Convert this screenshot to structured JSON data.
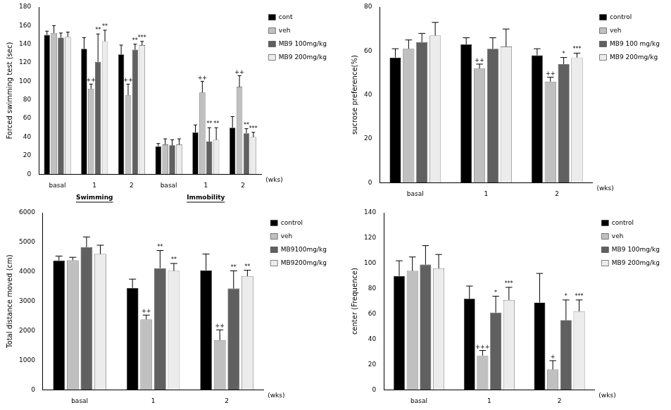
{
  "chart_data": [
    {
      "type": "bar",
      "y_label": "Forced swimming test (sec)",
      "x_label": "(wks)",
      "categories": [
        "basal",
        "1",
        "2",
        "basal",
        "1",
        "2"
      ],
      "groups": [
        "Swimming",
        "Immobility"
      ],
      "ylim": [
        0,
        180
      ],
      "yticks": [
        0,
        20,
        40,
        60,
        80,
        100,
        120,
        140,
        160,
        180
      ],
      "grid": false,
      "legend": "right",
      "series": [
        {
          "name": "cont",
          "color": "#000000",
          "values": [
            150,
            135,
            129,
            30,
            45,
            50
          ],
          "errors": [
            4,
            12,
            10,
            3,
            8,
            12
          ],
          "significance": [
            null,
            null,
            null,
            null,
            null,
            null
          ]
        },
        {
          "name": "veh",
          "color": "#c0c0c0",
          "values": [
            152,
            92,
            85,
            32,
            88,
            94
          ],
          "errors": [
            8,
            5,
            12,
            6,
            12,
            12
          ],
          "significance": [
            null,
            "++",
            "++",
            null,
            "++",
            "++"
          ]
        },
        {
          "name": "MB9 100mg/kg",
          "color": "#606060",
          "values": [
            147,
            121,
            134,
            31,
            35,
            44
          ],
          "errors": [
            5,
            30,
            6,
            6,
            15,
            5
          ],
          "significance": [
            null,
            "**",
            "**",
            null,
            "**",
            "**"
          ]
        },
        {
          "name": "MB9 200mg/kg",
          "color": "#ececec",
          "values": [
            148,
            143,
            139,
            32,
            37,
            40
          ],
          "errors": [
            5,
            12,
            4,
            6,
            13,
            5
          ],
          "significance": [
            null,
            "**",
            "***",
            null,
            "**",
            "***"
          ]
        }
      ]
    },
    {
      "type": "bar",
      "y_label": "sucrose preference(%)",
      "x_label": "(wks)",
      "categories": [
        "basal",
        "1",
        "2"
      ],
      "ylim": [
        0,
        80
      ],
      "yticks": [
        0,
        20,
        40,
        60,
        80
      ],
      "grid": false,
      "legend": "right",
      "series": [
        {
          "name": "control",
          "color": "#000000",
          "values": [
            57,
            63,
            58
          ],
          "errors": [
            4,
            3,
            3
          ],
          "significance": [
            null,
            null,
            null
          ]
        },
        {
          "name": "veh",
          "color": "#c0c0c0",
          "values": [
            61,
            52,
            46
          ],
          "errors": [
            4,
            2,
            2
          ],
          "significance": [
            null,
            "++",
            "++"
          ]
        },
        {
          "name": "MB9 100 mg/kg",
          "color": "#606060",
          "values": [
            64,
            61,
            54
          ],
          "errors": [
            4,
            5,
            3
          ],
          "significance": [
            null,
            null,
            "*"
          ]
        },
        {
          "name": "MB9 200mg/kg",
          "color": "#ececec",
          "values": [
            67,
            62,
            57
          ],
          "errors": [
            6,
            8,
            2
          ],
          "significance": [
            null,
            null,
            "***"
          ]
        }
      ]
    },
    {
      "type": "bar",
      "y_label": "Total distance moved (cm)",
      "x_label": "(wks)",
      "categories": [
        "basal",
        "1",
        "2"
      ],
      "ylim": [
        0,
        6000
      ],
      "yticks": [
        0,
        1000,
        2000,
        3000,
        4000,
        5000,
        6000
      ],
      "grid": false,
      "legend": "right",
      "series": [
        {
          "name": "control",
          "color": "#000000",
          "values": [
            4380,
            3450,
            4050
          ],
          "errors": [
            150,
            300,
            550
          ],
          "significance": [
            null,
            null,
            null
          ]
        },
        {
          "name": "veh",
          "color": "#c0c0c0",
          "values": [
            4390,
            2380,
            1680
          ],
          "errors": [
            100,
            150,
            350
          ],
          "significance": [
            null,
            "++",
            "++"
          ]
        },
        {
          "name": "MB9100mg/kg",
          "color": "#606060",
          "values": [
            4830,
            4120,
            3430
          ],
          "errors": [
            350,
            600,
            600
          ],
          "significance": [
            null,
            "**",
            "**"
          ]
        },
        {
          "name": "MB9200mg/kg",
          "color": "#ececec",
          "values": [
            4600,
            4030,
            3850
          ],
          "errors": [
            300,
            250,
            200
          ],
          "significance": [
            null,
            "**",
            "**"
          ]
        }
      ]
    },
    {
      "type": "bar",
      "y_label": "center (Frequence)",
      "x_label": "(wks)",
      "categories": [
        "basal",
        "1",
        "2"
      ],
      "ylim": [
        0,
        140
      ],
      "yticks": [
        0,
        20,
        40,
        60,
        80,
        100,
        120,
        140
      ],
      "grid": false,
      "legend": "right",
      "series": [
        {
          "name": "control",
          "color": "#000000",
          "values": [
            90,
            72,
            69
          ],
          "errors": [
            12,
            10,
            23
          ],
          "significance": [
            null,
            null,
            null
          ]
        },
        {
          "name": "veh",
          "color": "#c0c0c0",
          "values": [
            94,
            27,
            16
          ],
          "errors": [
            11,
            4,
            7
          ],
          "significance": [
            null,
            "+++",
            "+"
          ]
        },
        {
          "name": "MB9 100mg/kg",
          "color": "#606060",
          "values": [
            99,
            61,
            55
          ],
          "errors": [
            15,
            13,
            16
          ],
          "significance": [
            null,
            "*",
            "*"
          ]
        },
        {
          "name": "MB9 200mg/kg",
          "color": "#ececec",
          "values": [
            96,
            71,
            62
          ],
          "errors": [
            11,
            10,
            9
          ],
          "significance": [
            null,
            "***",
            "***"
          ]
        }
      ]
    }
  ]
}
